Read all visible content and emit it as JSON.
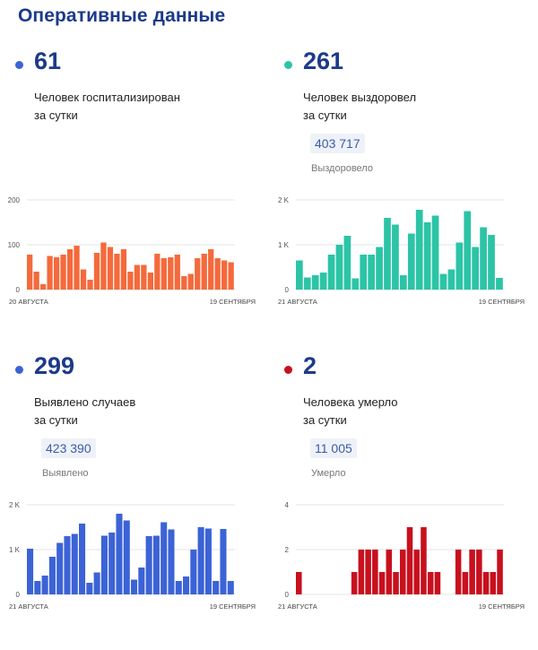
{
  "page": {
    "title": "Оперативные данные"
  },
  "panels": [
    {
      "id": "hospitalized",
      "value": "61",
      "line1": "Человек госпитализирован",
      "line2": "за сутки",
      "dot_color": "#3c63d6"
    },
    {
      "id": "recovered",
      "value": "261",
      "line1": "Человек выздоровел",
      "line2": "за сутки",
      "total": "403 717",
      "total_label": "Выздоровело",
      "dot_color": "#2cc4a6"
    },
    {
      "id": "cases",
      "value": "299",
      "line1": "Выявлено случаев",
      "line2": "за сутки",
      "total": "423 390",
      "total_label": "Выявлено",
      "dot_color": "#3c63d6"
    },
    {
      "id": "deaths",
      "value": "2",
      "line1": "Человека умерло",
      "line2": "за сутки",
      "total": "11 005",
      "total_label": "Умерло",
      "dot_color": "#c8101e"
    }
  ],
  "chart_data": [
    {
      "type": "bar",
      "color": "#f46a3c",
      "ylim": [
        0,
        200
      ],
      "yticks": [
        0,
        100,
        200
      ],
      "ytick_labels": [
        "0",
        "100",
        "200"
      ],
      "x_start_label": "20 АВГУСТА",
      "x_end_label": "19 СЕНТЯБРЯ",
      "grid": true,
      "values": [
        78,
        40,
        12,
        75,
        72,
        78,
        90,
        98,
        45,
        22,
        82,
        105,
        95,
        80,
        90,
        40,
        55,
        55,
        38,
        80,
        70,
        72,
        78,
        30,
        35,
        70,
        80,
        90,
        70,
        65,
        61
      ]
    },
    {
      "type": "bar",
      "color": "#2cc4a6",
      "ylim": [
        0,
        2000
      ],
      "yticks": [
        0,
        1000,
        2000
      ],
      "ytick_labels": [
        "0",
        "1 K",
        "2 K"
      ],
      "x_start_label": "21 АВГУСТА",
      "x_end_label": "19 СЕНТЯБРЯ",
      "grid": true,
      "values": [
        650,
        270,
        320,
        380,
        780,
        1000,
        1200,
        250,
        780,
        780,
        950,
        1600,
        1450,
        320,
        1250,
        1780,
        1500,
        1650,
        350,
        450,
        1050,
        1750,
        950,
        1390,
        1220,
        261
      ]
    },
    {
      "type": "bar",
      "color": "#3c63d6",
      "ylim": [
        0,
        2000
      ],
      "yticks": [
        0,
        1000,
        2000
      ],
      "ytick_labels": [
        "0",
        "1 K",
        "2 K"
      ],
      "x_start_label": "21 АВГУСТА",
      "x_end_label": "19 СЕНТЯБРЯ",
      "grid": true,
      "values": [
        1020,
        300,
        420,
        840,
        1150,
        1300,
        1350,
        1580,
        260,
        490,
        1310,
        1380,
        1800,
        1650,
        330,
        600,
        1300,
        1310,
        1610,
        1450,
        300,
        400,
        1000,
        1500,
        1470,
        300,
        1460,
        299
      ]
    },
    {
      "type": "bar",
      "color": "#c8101e",
      "ylim": [
        0,
        4
      ],
      "yticks": [
        0,
        2,
        4
      ],
      "ytick_labels": [
        "0",
        "2",
        "4"
      ],
      "x_start_label": "21 АВГУСТА",
      "x_end_label": "19 СЕНТЯБРЯ",
      "grid": true,
      "values": [
        1,
        0,
        0,
        0,
        0,
        0,
        0,
        0,
        1,
        2,
        2,
        2,
        1,
        2,
        1,
        2,
        3,
        2,
        3,
        1,
        1,
        0,
        0,
        2,
        1,
        2,
        2,
        1,
        1,
        2
      ]
    }
  ]
}
